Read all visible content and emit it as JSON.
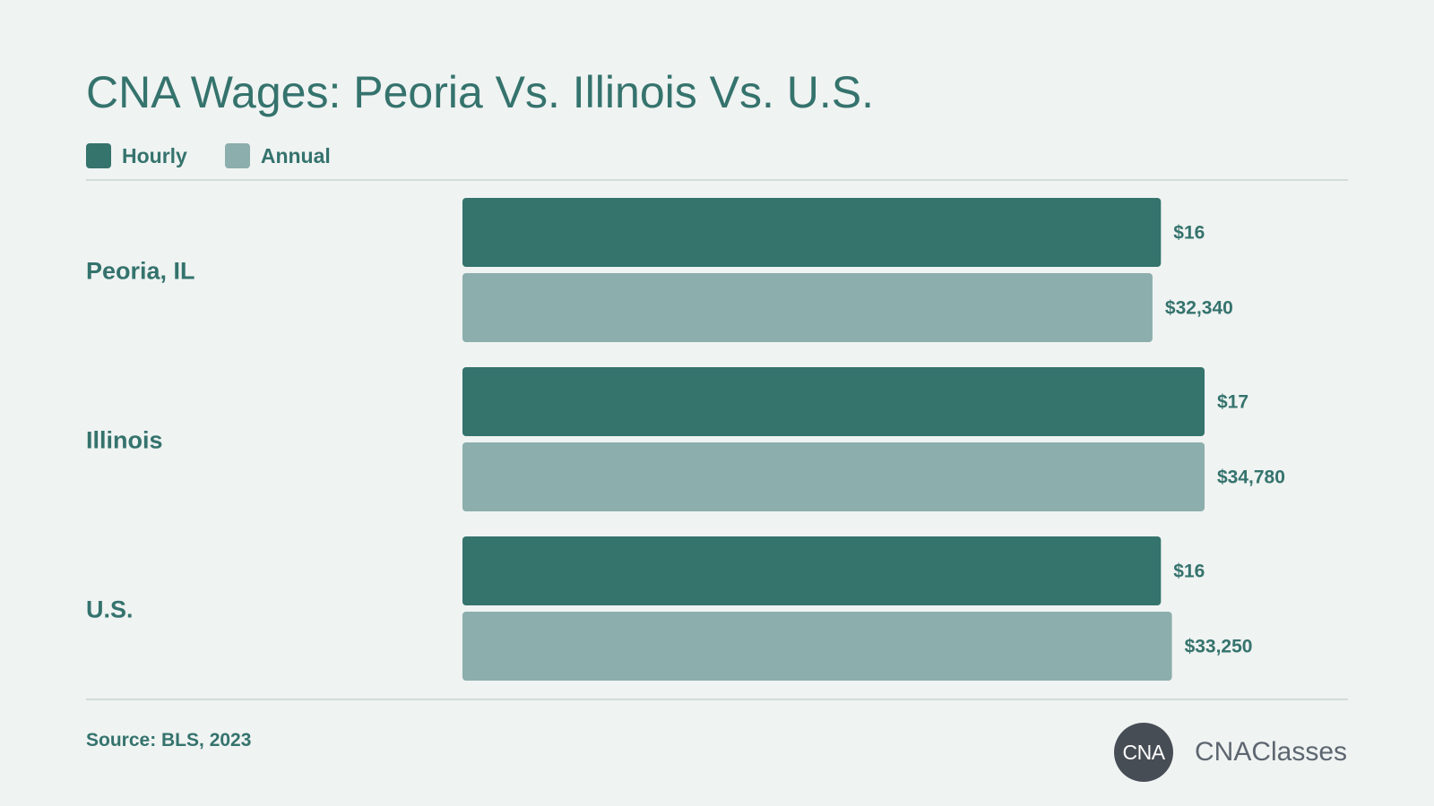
{
  "title": "CNA Wages: Peoria Vs. Illinois Vs. U.S.",
  "source": "Source: BLS, 2023",
  "brand": {
    "logo_text": "CNA",
    "name": "CNAClasses"
  },
  "colors": {
    "hourly": "#35736d",
    "annual": "#8caeac",
    "text": "#35736d",
    "background": "#eff3f2"
  },
  "legend": [
    {
      "label": "Hourly",
      "color": "#35736d"
    },
    {
      "label": "Annual",
      "color": "#8caeac"
    }
  ],
  "chart_data": {
    "type": "bar",
    "orientation": "horizontal",
    "categories": [
      "Peoria, IL",
      "Illinois",
      "U.S."
    ],
    "series": [
      {
        "name": "Hourly",
        "values": [
          16,
          17,
          16
        ],
        "labels": [
          "$16",
          "$17",
          "$16"
        ]
      },
      {
        "name": "Annual",
        "values": [
          32340,
          34780,
          33250
        ],
        "labels": [
          "$32,340",
          "$34,780",
          "$33,250"
        ]
      }
    ],
    "legend_position": "top-left",
    "grid": false
  }
}
